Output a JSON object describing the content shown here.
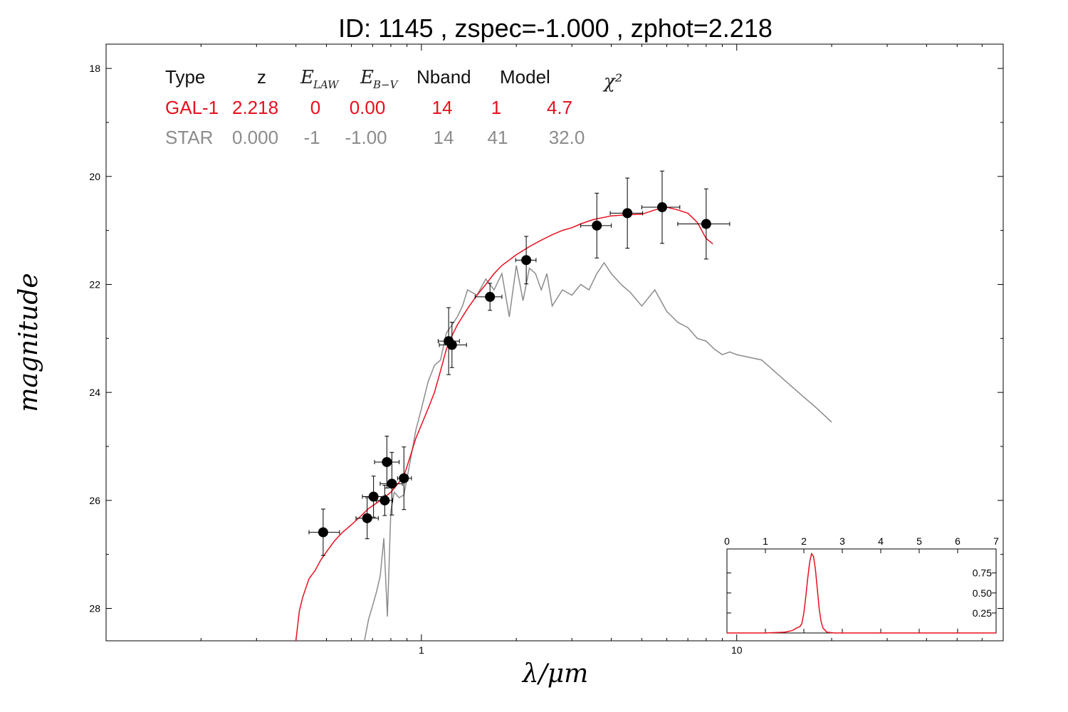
{
  "chart_data": {
    "type": "scatter",
    "title": "ID:  1145  , zspec=-1.000 , zphot=2.218",
    "xlabel": "λ/μm",
    "ylabel": "magnitude",
    "xscale": "log",
    "xlim": [
      0.1,
      70
    ],
    "ylim": [
      28.6,
      17.55
    ],
    "y_inverted": true,
    "xticks": [
      1,
      10
    ],
    "xtick_labels": [
      "1",
      "10"
    ],
    "yticks": [
      18,
      20,
      22,
      24,
      26,
      28
    ],
    "ytick_labels": [
      "18",
      "20",
      "22",
      "24",
      "26",
      "28"
    ],
    "colors": {
      "galaxy": "#e8101f",
      "star": "#8c8c8c",
      "points": "#000000"
    },
    "fit_table": {
      "headers": [
        "Type",
        "z",
        "E_LAW",
        "E_B-V",
        "Nband",
        "Model",
        "χ²"
      ],
      "rows": [
        {
          "values": [
            "GAL-1",
            "2.218",
            "0",
            "0.00",
            "14",
            "1",
            "4.7"
          ],
          "color": "#e8101f"
        },
        {
          "values": [
            "STAR",
            "0.000",
            "-1",
            "-1.00",
            "14",
            "41",
            "32.0"
          ],
          "color": "#8c8c8c"
        }
      ]
    },
    "photometry": [
      {
        "x": 0.488,
        "y": 26.59,
        "xerr": [
          0.44,
          0.55
        ],
        "yerr": 0.43
      },
      {
        "x": 0.673,
        "y": 26.33,
        "xerr": [
          0.62,
          0.73
        ],
        "yerr": 0.38
      },
      {
        "x": 0.705,
        "y": 25.93,
        "xerr": [
          0.65,
          0.77
        ],
        "yerr": 0.38
      },
      {
        "x": 0.765,
        "y": 26.0,
        "xerr": [
          0.72,
          0.81
        ],
        "yerr": 0.28
      },
      {
        "x": 0.777,
        "y": 25.29,
        "xerr": [
          0.71,
          0.85
        ],
        "yerr": 0.48
      },
      {
        "x": 0.806,
        "y": 25.69,
        "xerr": [
          0.74,
          0.87
        ],
        "yerr": 0.58
      },
      {
        "x": 0.88,
        "y": 25.59,
        "xerr": [
          0.84,
          0.93
        ],
        "yerr": 0.58
      },
      {
        "x": 1.22,
        "y": 23.05,
        "xerr": [
          1.13,
          1.32
        ],
        "yerr": 0.62
      },
      {
        "x": 1.25,
        "y": 23.12,
        "xerr": [
          1.14,
          1.39
        ],
        "yerr": 0.42
      },
      {
        "x": 1.65,
        "y": 22.23,
        "xerr": [
          1.48,
          1.8
        ],
        "yerr": 0.25
      },
      {
        "x": 2.15,
        "y": 21.55,
        "xerr": [
          1.99,
          2.31
        ],
        "yerr": 0.44
      },
      {
        "x": 3.6,
        "y": 20.91,
        "xerr": [
          3.2,
          4.0
        ],
        "yerr": 0.6
      },
      {
        "x": 4.5,
        "y": 20.68,
        "xerr": [
          3.97,
          5.03
        ],
        "yerr": 0.65
      },
      {
        "x": 5.8,
        "y": 20.57,
        "xerr": [
          5.0,
          6.6
        ],
        "yerr": 0.67
      },
      {
        "x": 8.0,
        "y": 20.88,
        "xerr": [
          6.5,
          9.5
        ],
        "yerr": 0.65
      }
    ],
    "series": [
      {
        "name": "GAL-1",
        "x": [
          0.4,
          0.41,
          0.42,
          0.44,
          0.46,
          0.48,
          0.5,
          0.53,
          0.56,
          0.6,
          0.64,
          0.68,
          0.72,
          0.76,
          0.8,
          0.84,
          0.88,
          0.92,
          0.96,
          1.0,
          1.05,
          1.1,
          1.15,
          1.2,
          1.25,
          1.3,
          1.4,
          1.5,
          1.6,
          1.7,
          1.8,
          2.0,
          2.2,
          2.4,
          2.6,
          2.8,
          3.0,
          3.2,
          3.5,
          4.0,
          4.5,
          5.0,
          5.5,
          6.0,
          6.5,
          7.0,
          7.5,
          8.0,
          8.4
        ],
        "y": [
          28.6,
          28.05,
          27.8,
          27.45,
          27.3,
          27.1,
          26.95,
          26.75,
          26.6,
          26.45,
          26.3,
          26.15,
          26.05,
          25.95,
          25.85,
          25.7,
          25.55,
          25.2,
          24.85,
          24.6,
          24.3,
          24.0,
          23.6,
          23.2,
          22.95,
          22.75,
          22.45,
          22.2,
          22.0,
          21.8,
          21.65,
          21.45,
          21.3,
          21.18,
          21.08,
          21.0,
          20.95,
          20.88,
          20.8,
          20.73,
          20.71,
          20.7,
          20.62,
          20.57,
          20.62,
          20.68,
          20.85,
          21.15,
          21.25
        ]
      },
      {
        "name": "STAR",
        "x": [
          0.66,
          0.68,
          0.7,
          0.72,
          0.74,
          0.76,
          0.78,
          0.8,
          0.82,
          0.85,
          0.88,
          0.92,
          0.96,
          1.0,
          1.05,
          1.1,
          1.15,
          1.2,
          1.25,
          1.3,
          1.35,
          1.4,
          1.5,
          1.6,
          1.7,
          1.8,
          1.9,
          2.0,
          2.1,
          2.2,
          2.3,
          2.4,
          2.5,
          2.6,
          2.8,
          3.0,
          3.2,
          3.4,
          3.6,
          3.8,
          4.0,
          4.3,
          4.6,
          5.0,
          5.5,
          6.0,
          6.5,
          7.0,
          7.5,
          8.0,
          8.5,
          9.0,
          9.5,
          10.0,
          12.0,
          15.0,
          18.0,
          20.0
        ],
        "y": [
          28.6,
          28.2,
          27.95,
          27.7,
          27.4,
          26.7,
          28.15,
          26.2,
          25.85,
          25.95,
          25.9,
          25.3,
          24.7,
          24.3,
          23.8,
          23.5,
          23.4,
          22.9,
          22.75,
          22.6,
          22.4,
          22.1,
          22.2,
          21.9,
          22.1,
          21.8,
          22.6,
          21.65,
          22.3,
          21.7,
          21.8,
          22.1,
          21.8,
          22.4,
          22.1,
          22.2,
          22.0,
          22.1,
          21.8,
          21.6,
          21.8,
          22.0,
          22.15,
          22.4,
          22.1,
          22.5,
          22.7,
          22.8,
          23.0,
          23.05,
          23.2,
          23.3,
          23.25,
          23.3,
          23.4,
          23.9,
          24.3,
          24.55
        ]
      }
    ],
    "inset": {
      "type": "line",
      "xlim": [
        0,
        7
      ],
      "ylim": [
        0,
        1.05
      ],
      "xticks": [
        0,
        1,
        2,
        3,
        4,
        5,
        6,
        7
      ],
      "xtick_labels": [
        "0",
        "1",
        "2",
        "3",
        "4",
        "5",
        "6",
        "7"
      ],
      "yticks": [
        0.25,
        0.5,
        0.75
      ],
      "ytick_labels": [
        "0.25",
        "0.50",
        "0.75"
      ],
      "x": [
        0,
        1.0,
        1.5,
        1.7,
        1.8,
        1.9,
        1.95,
        2.0,
        2.05,
        2.1,
        2.15,
        2.2,
        2.25,
        2.3,
        2.35,
        2.4,
        2.45,
        2.5,
        2.6,
        2.8,
        3.5,
        7.0
      ],
      "y": [
        0,
        0,
        0.01,
        0.03,
        0.06,
        0.08,
        0.12,
        0.25,
        0.45,
        0.68,
        0.88,
        0.99,
        0.96,
        0.8,
        0.55,
        0.3,
        0.14,
        0.06,
        0.01,
        0,
        0,
        0
      ]
    }
  }
}
